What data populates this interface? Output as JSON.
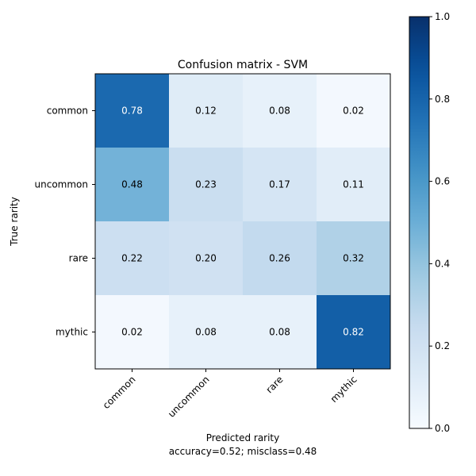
{
  "chart_data": {
    "type": "heatmap",
    "title": "Confusion matrix - SVM",
    "xlabel": "Predicted rarity",
    "xlabel_note": "accuracy=0.52; misclass=0.48",
    "ylabel": "True rarity",
    "x_categories": [
      "common",
      "uncommon",
      "rare",
      "mythic"
    ],
    "y_categories": [
      "common",
      "uncommon",
      "rare",
      "mythic"
    ],
    "values": [
      [
        0.78,
        0.12,
        0.08,
        0.02
      ],
      [
        0.48,
        0.23,
        0.17,
        0.11
      ],
      [
        0.22,
        0.2,
        0.26,
        0.32
      ],
      [
        0.02,
        0.08,
        0.08,
        0.82
      ]
    ],
    "value_labels": [
      [
        "0.78",
        "0.12",
        "0.08",
        "0.02"
      ],
      [
        "0.48",
        "0.23",
        "0.17",
        "0.11"
      ],
      [
        "0.22",
        "0.20",
        "0.26",
        "0.32"
      ],
      [
        "0.02",
        "0.08",
        "0.08",
        "0.82"
      ]
    ],
    "colormap": "Blues",
    "colorbar": {
      "range": [
        0.0,
        1.0
      ],
      "ticks": [
        0.0,
        0.2,
        0.4,
        0.6,
        0.8,
        1.0
      ],
      "tick_labels": [
        "0.0",
        "0.2",
        "0.4",
        "0.6",
        "0.8",
        "1.0"
      ]
    },
    "text_threshold": 0.5,
    "colors": {
      "text_dark": "#000000",
      "text_light": "#ffffff",
      "axis": "#000000"
    },
    "grid": false
  }
}
